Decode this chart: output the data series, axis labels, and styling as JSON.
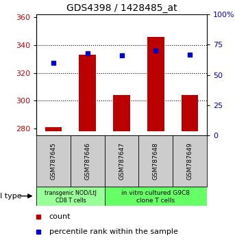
{
  "title": "GDS4398 / 1428485_at",
  "samples": [
    "GSM787645",
    "GSM787646",
    "GSM787647",
    "GSM787648",
    "GSM787649"
  ],
  "counts": [
    281,
    333,
    304,
    346,
    304
  ],
  "percentiles_pct": [
    60,
    68,
    66,
    70,
    67
  ],
  "ylim_left": [
    275,
    362
  ],
  "ylim_right": [
    0,
    100
  ],
  "yticks_left": [
    280,
    300,
    320,
    340,
    360
  ],
  "yticks_right": [
    0,
    25,
    50,
    75,
    100
  ],
  "bar_color": "#bb0000",
  "dot_color": "#0000cc",
  "bar_bottom": 278,
  "bar_width": 0.5,
  "grid_yticks": [
    300,
    320,
    340
  ],
  "tick_color_left": "#cc0000",
  "tick_color_right": "#0000cc",
  "group1_label_line1": "transgenic NOD/LtJ",
  "group1_label_line2": "CD8 T cells",
  "group2_label_line1": "in vitro cultured G9C8",
  "group2_label_line2": "clone T cells",
  "group1_color": "#99ff99",
  "group2_color": "#66ff66",
  "sample_box_color": "#cccccc",
  "legend_count_label": "count",
  "legend_pct_label": "percentile rank within the sample",
  "cell_type_label": "cell type"
}
